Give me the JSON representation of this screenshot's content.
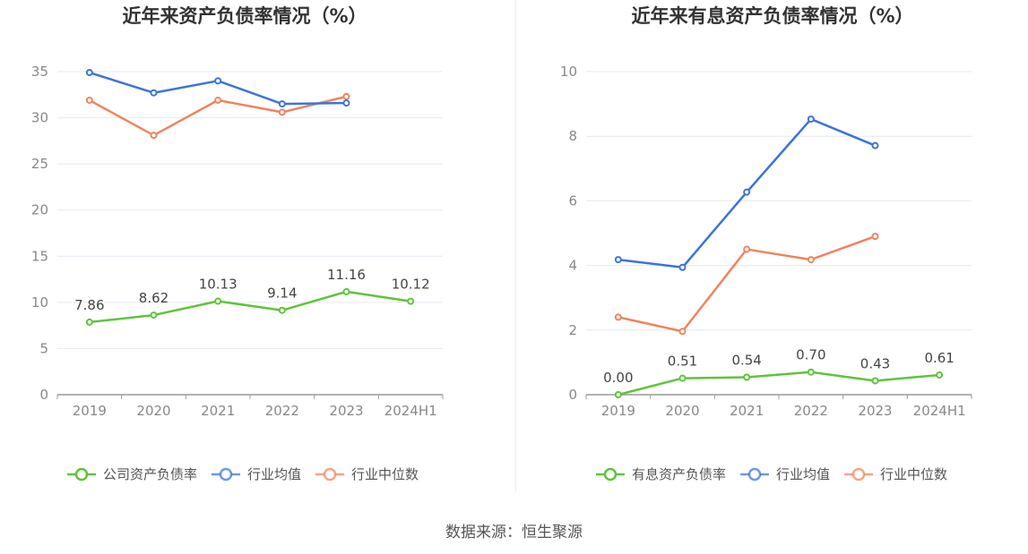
{
  "colors": {
    "company": "#5fc43a",
    "industry_avg": "#3a74dd",
    "industry_median": "#f0845e",
    "grid": "#e6e9f2",
    "axis": "#999999"
  },
  "source_text": "数据来源：恒生聚源",
  "chart_data": [
    {
      "type": "line",
      "title": "近年来资产负债率情况（%）",
      "categories": [
        "2019",
        "2020",
        "2021",
        "2022",
        "2023",
        "2024H1"
      ],
      "yticks": [
        "0",
        "5",
        "10",
        "15",
        "20",
        "25",
        "30",
        "35"
      ],
      "ylim": [
        0,
        35
      ],
      "grid": true,
      "legend_position": "bottom",
      "series": [
        {
          "name": "公司资产负债率",
          "color": "#5fc43a",
          "labeled": true,
          "values": [
            7.86,
            8.62,
            10.13,
            9.14,
            11.16,
            10.12
          ],
          "labels": [
            "7.86",
            "8.62",
            "10.13",
            "9.14",
            "11.16",
            "10.12"
          ]
        },
        {
          "name": "行业均值",
          "color": "#3a74dd",
          "labeled": false,
          "values": [
            34.9,
            32.7,
            34.0,
            31.5,
            31.6,
            null
          ]
        },
        {
          "name": "行业中位数",
          "color": "#f0845e",
          "labeled": false,
          "values": [
            31.9,
            28.1,
            31.9,
            30.6,
            32.3,
            null
          ]
        }
      ]
    },
    {
      "type": "line",
      "title": "近年来有息资产负债率情况（%）",
      "categories": [
        "2019",
        "2020",
        "2021",
        "2022",
        "2023",
        "2024H1"
      ],
      "yticks": [
        "0",
        "2",
        "4",
        "6",
        "8",
        "10"
      ],
      "ylim": [
        0,
        10
      ],
      "grid": true,
      "legend_position": "bottom",
      "series": [
        {
          "name": "有息资产负债率",
          "color": "#5fc43a",
          "labeled": true,
          "values": [
            0.0,
            0.51,
            0.54,
            0.7,
            0.43,
            0.61
          ],
          "labels": [
            "0.00",
            "0.51",
            "0.54",
            "0.70",
            "0.43",
            "0.61"
          ]
        },
        {
          "name": "行业均值",
          "color": "#3a74dd",
          "labeled": false,
          "values": [
            4.18,
            3.94,
            6.27,
            8.53,
            7.71,
            null
          ]
        },
        {
          "name": "行业中位数",
          "color": "#f0845e",
          "labeled": false,
          "values": [
            2.4,
            1.96,
            4.5,
            4.18,
            4.9,
            null
          ]
        }
      ]
    }
  ]
}
